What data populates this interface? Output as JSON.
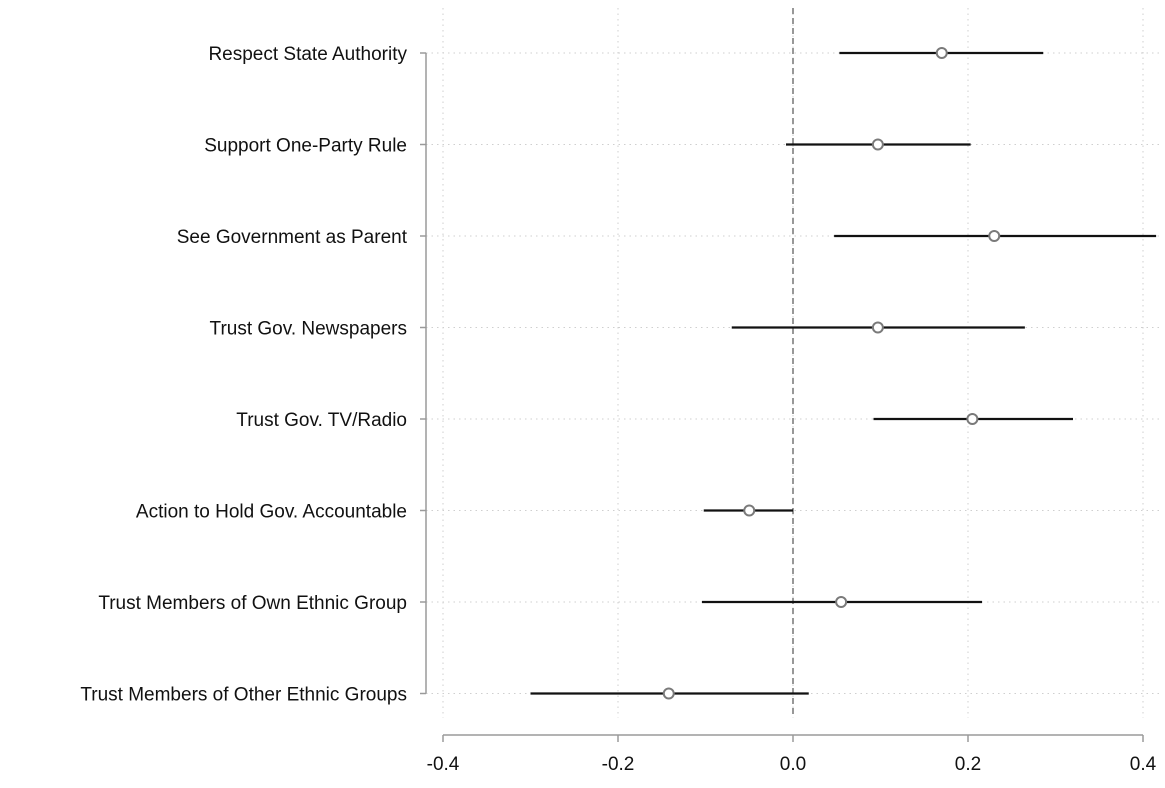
{
  "chart_data": {
    "type": "coefficient-plot",
    "orientation": "horizontal",
    "title": "",
    "xlabel": "",
    "ylabel": "",
    "categories": [
      "Respect State Authority",
      "Support One-Party Rule",
      "See Government as Parent",
      "Trust Gov. Newspapers",
      "Trust Gov. TV/Radio",
      "Action to Hold Gov. Accountable",
      "Trust Members of Own Ethnic Group",
      "Trust Members of Other Ethnic Groups"
    ],
    "estimates": [
      0.17,
      0.097,
      0.23,
      0.097,
      0.205,
      -0.05,
      0.055,
      -0.142
    ],
    "ci_lower": [
      0.053,
      -0.008,
      0.047,
      -0.07,
      0.092,
      -0.102,
      -0.104,
      -0.3
    ],
    "ci_upper": [
      0.286,
      0.203,
      0.415,
      0.265,
      0.32,
      0.0,
      0.216,
      0.018
    ],
    "xlim": [
      -0.4,
      0.4
    ],
    "xticks": [
      -0.4,
      -0.2,
      0.0,
      0.2,
      0.4
    ],
    "xtick_labels": [
      "-0.4",
      "-0.2",
      "0.0",
      "0.2",
      "0.4"
    ],
    "reference_line": 0.0,
    "grid": true,
    "colors": {
      "ci_line": "#111111",
      "marker_stroke": "#7a7a7a",
      "reference_line": "#7f7f7f",
      "grid": "#cfcfcf",
      "axis": "#9a9a9a"
    }
  }
}
